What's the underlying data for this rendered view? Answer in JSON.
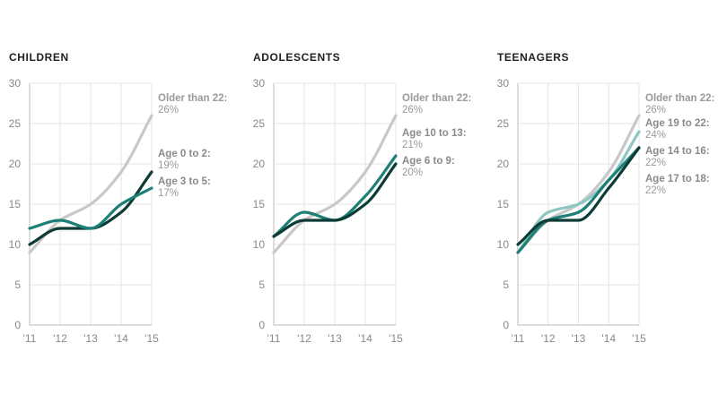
{
  "chart_data": [
    {
      "type": "line",
      "title": "CHILDREN",
      "x": [
        "'11",
        "'12",
        "'13",
        "'14",
        "'15"
      ],
      "ylim": [
        0,
        30
      ],
      "yticks": [
        0,
        5,
        10,
        15,
        20,
        25,
        30
      ],
      "series": [
        {
          "name": "Older than 22:",
          "label": "26%",
          "color": "#c8c8c8",
          "values": [
            9,
            13,
            15,
            19,
            26
          ]
        },
        {
          "name": "Age 0 to 2:",
          "label": "19%",
          "color": "#0d3b36",
          "values": [
            10,
            12,
            12,
            14,
            19
          ]
        },
        {
          "name": "Age 3 to 5:",
          "label": "17%",
          "color": "#1e7f76",
          "values": [
            12,
            13,
            12,
            15,
            17
          ]
        }
      ]
    },
    {
      "type": "line",
      "title": "ADOLESCENTS",
      "x": [
        "'11",
        "'12",
        "'13",
        "'14",
        "'15"
      ],
      "ylim": [
        0,
        30
      ],
      "yticks": [
        0,
        5,
        10,
        15,
        20,
        25,
        30
      ],
      "series": [
        {
          "name": "Older than 22:",
          "label": "26%",
          "color": "#c8c8c8",
          "values": [
            9,
            13,
            15,
            19,
            26
          ]
        },
        {
          "name": "Age 10 to 13:",
          "label": "21%",
          "color": "#1e7f76",
          "values": [
            11,
            14,
            13,
            16,
            21
          ]
        },
        {
          "name": "Age 6 to 9:",
          "label": "20%",
          "color": "#0d3b36",
          "values": [
            11,
            13,
            13,
            15,
            20
          ]
        }
      ]
    },
    {
      "type": "line",
      "title": "TEENAGERS",
      "x": [
        "'11",
        "'12",
        "'13",
        "'14",
        "'15"
      ],
      "ylim": [
        0,
        30
      ],
      "yticks": [
        0,
        5,
        10,
        15,
        20,
        25,
        30
      ],
      "series": [
        {
          "name": "Older than 22:",
          "label": "26%",
          "color": "#c8c8c8",
          "values": [
            9,
            13,
            15,
            19,
            26
          ]
        },
        {
          "name": "Age 19 to 22:",
          "label": "24%",
          "color": "#8ec7c1",
          "values": [
            9,
            14,
            15,
            18,
            24
          ]
        },
        {
          "name": "Age 14 to 16:",
          "label": "22%",
          "color": "#1e7f76",
          "values": [
            9,
            13,
            14,
            18,
            22
          ]
        },
        {
          "name": "Age 17 to 18:",
          "label": "22%",
          "color": "#0d3b36",
          "values": [
            10,
            13,
            13,
            17,
            22
          ]
        }
      ]
    }
  ]
}
